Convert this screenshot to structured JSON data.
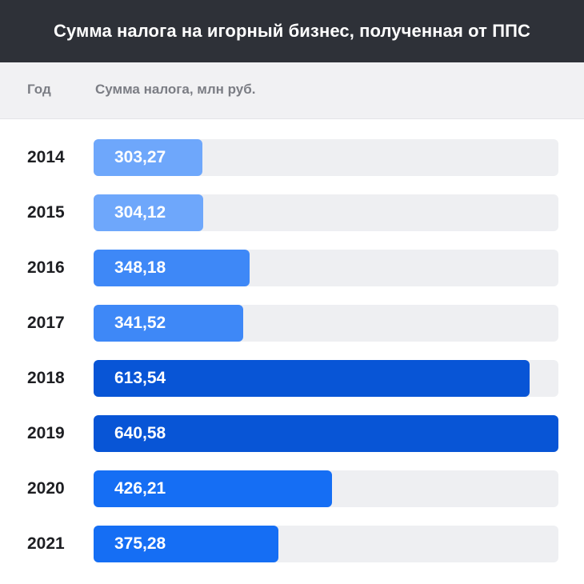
{
  "title": "Сумма налога на игорный бизнес, полученная от ППС",
  "header": {
    "year_label": "Год",
    "value_label": "Сумма налога, млн руб."
  },
  "colors": {
    "title_bg": "#2e3138",
    "header_bg": "#f1f1f3",
    "track": "#eeeff2"
  },
  "chart_data": {
    "type": "bar",
    "orientation": "horizontal",
    "categories": [
      "2014",
      "2015",
      "2016",
      "2017",
      "2018",
      "2019",
      "2020",
      "2021"
    ],
    "values": [
      303.27,
      304.12,
      348.18,
      341.52,
      613.54,
      640.58,
      426.21,
      375.28
    ],
    "value_labels": [
      "303,27",
      "304,12",
      "348,18",
      "341,52",
      "613,54",
      "640,58",
      "426,21",
      "375,28"
    ],
    "bar_colors": [
      "#6ea7fb",
      "#6ea7fb",
      "#3e88f7",
      "#3e88f7",
      "#0855d6",
      "#0855d6",
      "#156ef4",
      "#156ef4"
    ],
    "title": "Сумма налога на игорный бизнес, полученная от ППС",
    "xlabel": "Сумма налога, млн руб.",
    "ylabel": "Год",
    "xlim": [
      200,
      640.58
    ]
  }
}
